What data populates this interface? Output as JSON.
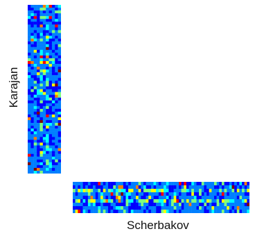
{
  "labels": {
    "vertical_matrix": "Karajan",
    "horizontal_matrix": "Scherbakov"
  },
  "colormap": {
    "name": "jet",
    "stops": [
      "#00007f",
      "#0000ff",
      "#007fff",
      "#00ffff",
      "#7fff7f",
      "#ffff00",
      "#ff7f00",
      "#ff0000",
      "#7f0000"
    ]
  },
  "matrices": {
    "karajan": {
      "orientation": "vertical",
      "columns": 11,
      "rows": 60
    },
    "scherbakov": {
      "orientation": "horizontal",
      "columns": 70,
      "rows": 9
    }
  }
}
